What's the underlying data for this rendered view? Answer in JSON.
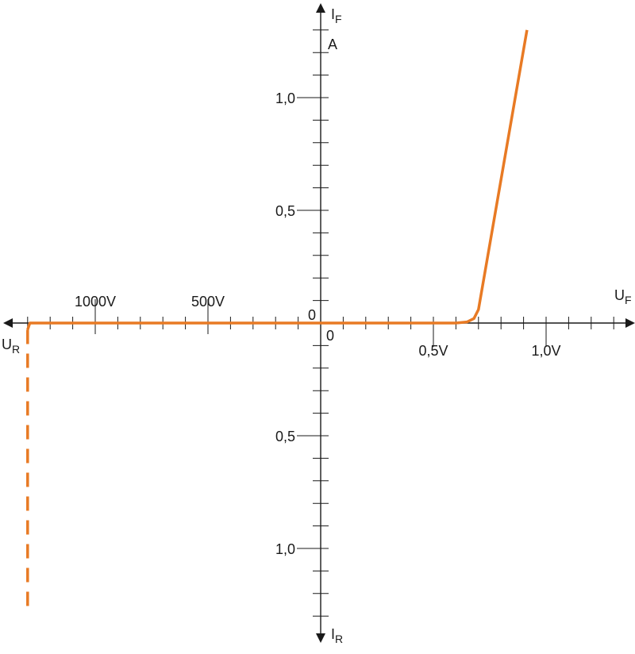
{
  "chart_data": {
    "type": "line",
    "title": "",
    "axes": {
      "forward_voltage": {
        "label": "U",
        "label_sub": "F",
        "ticks_step": 0.1,
        "range": [
          0,
          1.3
        ],
        "tick_labels": [
          {
            "value": 0,
            "text": "0"
          },
          {
            "value": 0.5,
            "text": "0,5V"
          },
          {
            "value": 1.0,
            "text": "1,0V"
          }
        ]
      },
      "reverse_voltage": {
        "label": "U",
        "label_sub": "R",
        "ticks_step": 100,
        "range": [
          0,
          1300
        ],
        "tick_labels": [
          {
            "value": 0,
            "text": "0"
          },
          {
            "value": 500,
            "text": "500V"
          },
          {
            "value": 1000,
            "text": "1000V"
          }
        ]
      },
      "forward_current": {
        "label": "I",
        "label_sub": "F",
        "unit": "A",
        "ticks_step": 0.1,
        "range": [
          0,
          1.3
        ],
        "tick_labels": [
          {
            "value": 0.5,
            "text": "0,5"
          },
          {
            "value": 1.0,
            "text": "1,0"
          }
        ]
      },
      "reverse_current": {
        "label": "I",
        "label_sub": "R",
        "ticks_step": 0.1,
        "range": [
          0,
          1.3
        ],
        "tick_labels": [
          {
            "value": 0.5,
            "text": "0,5"
          },
          {
            "value": 1.0,
            "text": "1,0"
          }
        ]
      }
    },
    "series": [
      {
        "kind": "forward",
        "points": [
          [
            0,
            0
          ],
          [
            0.6,
            0
          ],
          [
            0.65,
            0.005
          ],
          [
            0.68,
            0.02
          ],
          [
            0.7,
            0.06
          ],
          [
            0.915,
            1.3
          ]
        ]
      },
      {
        "kind": "reverse",
        "points": [
          [
            0,
            0
          ],
          [
            1290,
            0
          ],
          [
            1300,
            -0.03
          ]
        ]
      },
      {
        "kind": "reverse-breakdown",
        "style": "dashed",
        "points": [
          [
            1300,
            -0.03
          ],
          [
            1300,
            -1.28
          ]
        ]
      }
    ],
    "grid": false,
    "colors": {
      "curve": "#e87a24",
      "axis": "#1a1a1a"
    }
  }
}
